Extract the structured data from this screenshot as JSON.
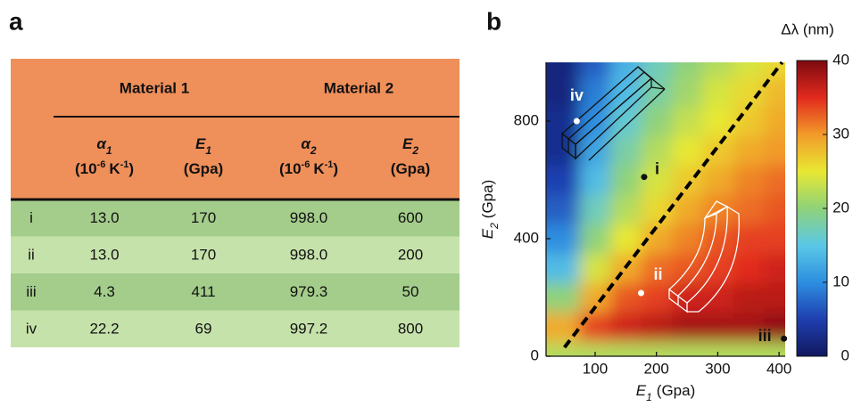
{
  "panel_a": {
    "label": "a",
    "table": {
      "groups": [
        "Material 1",
        "Material 2"
      ],
      "columns": [
        {
          "symbol": "α",
          "sub": "1",
          "unit": [
            "(10",
            "-6",
            "K",
            "-1",
            ")"
          ]
        },
        {
          "symbol": "E",
          "sub": "1",
          "unit": [
            "(Gpa)"
          ]
        },
        {
          "symbol": "α",
          "sub": "2",
          "unit": [
            "(10",
            "-6",
            "K",
            "-1",
            ")"
          ]
        },
        {
          "symbol": "E",
          "sub": "2",
          "unit": [
            "(Gpa)"
          ]
        }
      ],
      "rows": [
        [
          "i",
          "13.0",
          "170",
          "998.0",
          "600"
        ],
        [
          "ii",
          "13.0",
          "170",
          "998.0",
          "200"
        ],
        [
          "iii",
          "4.3",
          "411",
          "979.3",
          "50"
        ],
        [
          "iv",
          "22.2",
          "69",
          "997.2",
          "800"
        ]
      ]
    }
  },
  "chart_data": {
    "type": "contour",
    "panel_label": "b",
    "xlabel": {
      "symbol": "E",
      "sub": "1",
      "unit": "(Gpa)"
    },
    "ylabel": {
      "symbol": "E",
      "sub": "2",
      "unit": "(Gpa)"
    },
    "xlim": [
      20,
      410
    ],
    "xticks": [
      100,
      200,
      300,
      400
    ],
    "ylim": [
      0,
      1000
    ],
    "yticks": [
      0,
      400,
      800
    ],
    "x": [
      50,
      100,
      150,
      200,
      250,
      300,
      350,
      400
    ],
    "y": [
      0,
      100,
      200,
      300,
      400,
      500,
      600,
      700,
      800,
      900,
      1000
    ],
    "z": [
      [
        22,
        22,
        22,
        22,
        22,
        22,
        22,
        22
      ],
      [
        29,
        34,
        36,
        37,
        38,
        38,
        38,
        39
      ],
      [
        20,
        29,
        33,
        34,
        36,
        36,
        37,
        37
      ],
      [
        14,
        24,
        29,
        32,
        33,
        34,
        35,
        36
      ],
      [
        10,
        20,
        25,
        29,
        31,
        33,
        34,
        34
      ],
      [
        7,
        17,
        22,
        26,
        29,
        31,
        32,
        33
      ],
      [
        5,
        14,
        20,
        24,
        27,
        29,
        31,
        32
      ],
      [
        3,
        12,
        18,
        22,
        25,
        27,
        29,
        30
      ],
      [
        3,
        10,
        16,
        20,
        23,
        25,
        27,
        29
      ],
      [
        2,
        9,
        14,
        18,
        21,
        24,
        26,
        28
      ],
      [
        2,
        7,
        13,
        17,
        20,
        22,
        24,
        26
      ]
    ],
    "colorbar": {
      "label": "Δλ (nm)",
      "zlim": [
        0,
        40
      ],
      "ticks": [
        0,
        10,
        20,
        30,
        40
      ],
      "colormap": [
        "#10185e",
        "#1f3fb0",
        "#2d8ee0",
        "#5ac8e6",
        "#8fd27a",
        "#e8e832",
        "#f29a2a",
        "#e22a1e",
        "#7d0a10"
      ]
    },
    "reference_line": {
      "x": [
        50,
        405
      ],
      "y": [
        30,
        1000
      ],
      "color": "#000000",
      "style": "dashed"
    },
    "points": [
      {
        "label": "iv",
        "x": 70,
        "y": 800,
        "color": "#ffffff"
      },
      {
        "label": "i",
        "x": 180,
        "y": 610,
        "color": "#111111"
      },
      {
        "label": "ii",
        "x": 175,
        "y": 215,
        "color": "#ffffff"
      },
      {
        "label": "iii",
        "x": 408,
        "y": 60,
        "color": "#111111"
      }
    ]
  }
}
